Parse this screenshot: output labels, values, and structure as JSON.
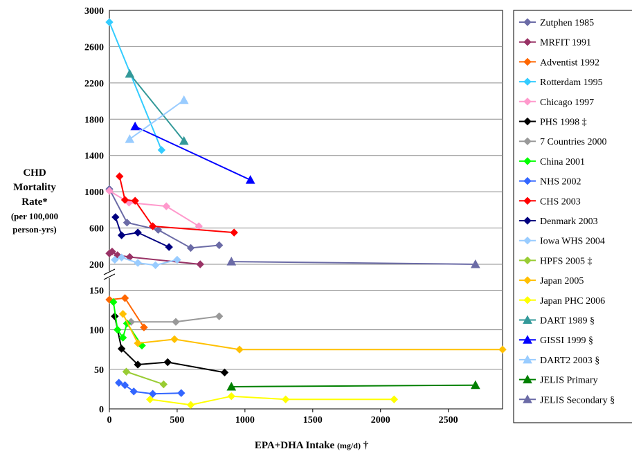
{
  "chart_data": {
    "type": "scatter",
    "lines": true,
    "xlabel": "EPA+DHA Intake",
    "xlabel_unit": "(mg/d)",
    "xlabel_mark": "†",
    "ylabel_lines": [
      "CHD",
      "Mortality",
      "Rate*"
    ],
    "ylabel_unit_lines": [
      "(per 100,000",
      "person-yrs)"
    ],
    "xlim": [
      0,
      2900
    ],
    "x_ticks": [
      0,
      500,
      1000,
      1500,
      2000,
      2500
    ],
    "y_axis_broken": true,
    "y_upper_panel": {
      "ylim": [
        0,
        3000
      ],
      "ticks": [
        200,
        600,
        1000,
        1400,
        1800,
        2200,
        2600,
        3000
      ]
    },
    "y_lower_panel": {
      "ylim": [
        0,
        160
      ],
      "ticks": [
        0,
        50,
        100,
        150
      ]
    },
    "grid": true,
    "legend_position": "right",
    "series": [
      {
        "name": "Zutphen 1985",
        "color": "#6B6BA6",
        "marker": "diamond",
        "panel": "upper",
        "x": [
          0,
          130,
          360,
          600,
          810
        ],
        "y": [
          1030,
          660,
          580,
          380,
          410
        ]
      },
      {
        "name": "MRFIT 1991",
        "color": "#993366",
        "marker": "diamond",
        "panel": "upper",
        "x": [
          0,
          20,
          60,
          150,
          670
        ],
        "y": [
          320,
          340,
          300,
          280,
          200
        ]
      },
      {
        "name": "Adventist 1992",
        "color": "#FF6600",
        "marker": "diamond",
        "panel": "lower",
        "x": [
          0,
          115,
          255
        ],
        "y": [
          138,
          140,
          103
        ]
      },
      {
        "name": "Rotterdam 1995",
        "color": "#33CCFF",
        "marker": "diamond",
        "panel": "upper",
        "x": [
          0,
          385
        ],
        "y": [
          2870,
          1460
        ]
      },
      {
        "name": "Chicago 1997",
        "color": "#FF99CC",
        "marker": "diamond",
        "panel": "upper",
        "x": [
          0,
          145,
          420,
          660
        ],
        "y": [
          1010,
          880,
          840,
          620
        ]
      },
      {
        "name": "PHS 1998",
        "name_mark": "‡",
        "color": "#000000",
        "marker": "diamond",
        "panel": "lower",
        "x": [
          40,
          90,
          210,
          430,
          850
        ],
        "y": [
          117,
          76,
          56,
          59,
          46
        ]
      },
      {
        "name": "7 Countries 2000",
        "color": "#999999",
        "marker": "diamond",
        "panel": "lower",
        "x": [
          160,
          490,
          810
        ],
        "y": [
          110,
          110,
          117
        ]
      },
      {
        "name": "China 2001",
        "color": "#00FF00",
        "marker": "diamond",
        "panel": "lower",
        "x": [
          30,
          60,
          100,
          130,
          240
        ],
        "y": [
          135,
          100,
          90,
          108,
          80
        ]
      },
      {
        "name": "NHS 2002",
        "color": "#3366FF",
        "marker": "diamond",
        "panel": "lower",
        "x": [
          70,
          115,
          180,
          320,
          530
        ],
        "y": [
          33,
          30,
          22,
          19,
          20
        ]
      },
      {
        "name": "CHS 2003",
        "color": "#FF0000",
        "marker": "diamond",
        "panel": "upper",
        "x": [
          75,
          115,
          190,
          320,
          920
        ],
        "y": [
          1170,
          910,
          900,
          620,
          550
        ]
      },
      {
        "name": "Denmark 2003",
        "color": "#000080",
        "marker": "diamond",
        "panel": "upper",
        "x": [
          45,
          90,
          210,
          440
        ],
        "y": [
          720,
          520,
          550,
          390
        ]
      },
      {
        "name": "Iowa WHS 2004",
        "color": "#99CCFF",
        "marker": "diamond",
        "panel": "upper",
        "x": [
          40,
          90,
          210,
          340,
          500
        ],
        "y": [
          250,
          275,
          215,
          190,
          250
        ]
      },
      {
        "name": "HPFS 2005",
        "name_mark": "‡",
        "color": "#99CC33",
        "marker": "diamond",
        "panel": "lower",
        "x": [
          125,
          400
        ],
        "y": [
          47,
          31
        ]
      },
      {
        "name": "Japan 2005",
        "color": "#FFC000",
        "marker": "diamond",
        "panel": "lower",
        "x": [
          100,
          210,
          480,
          960,
          2900
        ],
        "y": [
          120,
          83,
          88,
          75,
          75
        ]
      },
      {
        "name": "Japan PHC 2006",
        "color": "#FFFF00",
        "marker": "diamond",
        "panel": "lower",
        "x": [
          300,
          600,
          900,
          1300,
          2100
        ],
        "y": [
          12,
          5,
          16,
          12,
          12
        ]
      },
      {
        "name": "DART 1989",
        "name_mark": "§",
        "color": "#339999",
        "marker": "triangle",
        "panel": "upper",
        "x": [
          150,
          550
        ],
        "y": [
          2300,
          1560
        ]
      },
      {
        "name": "GISSI 1999",
        "name_mark": "§",
        "color": "#0000FF",
        "marker": "triangle",
        "panel": "upper",
        "x": [
          190,
          1040
        ],
        "y": [
          1720,
          1130
        ]
      },
      {
        "name": "DART2 2003",
        "name_mark": "§",
        "color": "#99CCFF",
        "marker": "triangle",
        "panel": "upper",
        "x": [
          150,
          550
        ],
        "y": [
          1580,
          2010
        ]
      },
      {
        "name": "JELIS Primary",
        "color": "#008000",
        "marker": "triangle",
        "panel": "lower",
        "x": [
          900,
          2700
        ],
        "y": [
          28,
          30
        ]
      },
      {
        "name": "JELIS Secondary",
        "name_mark": "§",
        "color": "#6B6BA6",
        "marker": "triangle",
        "panel": "upper",
        "x": [
          900,
          2700
        ],
        "y": [
          230,
          200
        ]
      }
    ]
  }
}
